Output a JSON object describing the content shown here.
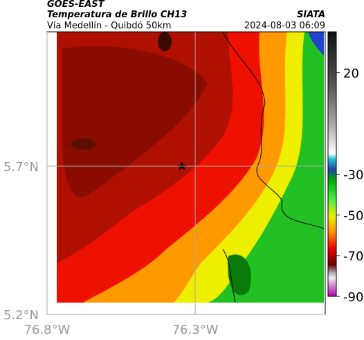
{
  "header": {
    "title": "GOES-EAST",
    "subtitle": "Temperatura de Brillo CH13",
    "source": "SIATA",
    "region": "Vía Medellín - Quibdó 50km",
    "timestamp": "2024-08-03 06:09"
  },
  "map": {
    "xlim": [
      -76.8,
      -75.861
    ],
    "ylim": [
      5.2,
      6.153
    ],
    "xticks": [
      {
        "value": -76.8,
        "label": "76.8°W"
      },
      {
        "value": -76.3,
        "label": "76.3°W"
      }
    ],
    "yticks": [
      {
        "value": 5.2,
        "label": "5.2°N"
      },
      {
        "value": 5.7,
        "label": "5.7°N"
      }
    ],
    "grid": true
  },
  "colorbar": {
    "lim": [
      40,
      -90
    ],
    "ticks": [
      20,
      -30,
      -50,
      -70,
      -90
    ]
  }
}
